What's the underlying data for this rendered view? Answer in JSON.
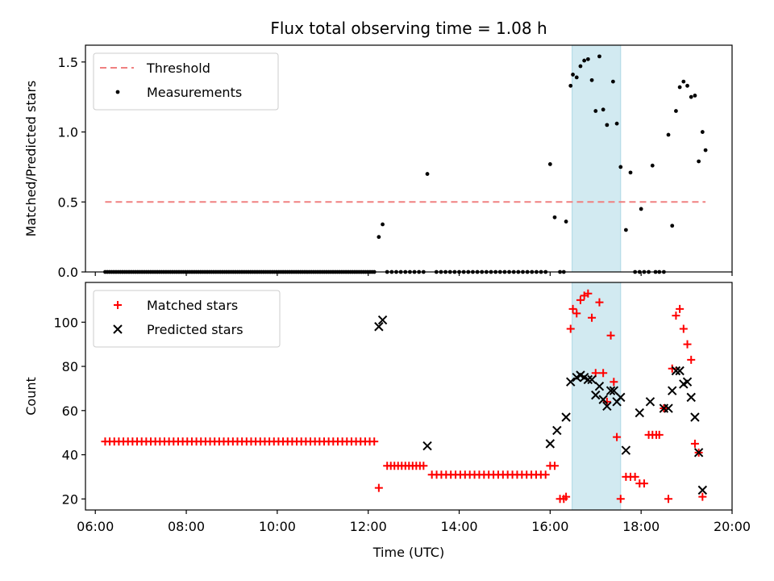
{
  "figure": {
    "title": "Flux total observing time = 1.08 h",
    "xlabel": "Time (UTC)"
  },
  "chart_data": [
    {
      "type": "scatter",
      "panel": "top",
      "ylabel": "Matched/Predicted stars",
      "xlim": [
        "05:47",
        "20:00"
      ],
      "ylim": [
        0.0,
        1.62
      ],
      "yticks": [
        0.0,
        0.5,
        1.0,
        1.5
      ],
      "ytick_labels": [
        "0.0",
        "0.5",
        "1.0",
        "1.5"
      ],
      "legend_position": "upper-left",
      "highlight": {
        "from": "16:29",
        "to": "17:33",
        "color": "#add8e6"
      },
      "threshold": {
        "name": "Threshold",
        "value": 0.5,
        "from": "06:13",
        "to": "19:25",
        "color": "#f08080",
        "style": "dashed"
      },
      "series": [
        {
          "name": "Measurements",
          "color": "#000000",
          "zero_run": {
            "from": "06:13",
            "to": "12:08",
            "count": 125,
            "value": 0
          },
          "points": [
            [
              "12:14",
              0.25
            ],
            [
              "12:19",
              0.34
            ],
            [
              "12:25",
              0.0
            ],
            [
              "12:31",
              0.0
            ],
            [
              "12:37",
              0.0
            ],
            [
              "12:43",
              0.0
            ],
            [
              "12:49",
              0.0
            ],
            [
              "12:55",
              0.0
            ],
            [
              "13:01",
              0.0
            ],
            [
              "13:07",
              0.0
            ],
            [
              "13:13",
              0.0
            ],
            [
              "13:18",
              0.7
            ],
            [
              "13:30",
              0.0
            ],
            [
              "13:36",
              0.0
            ],
            [
              "13:42",
              0.0
            ],
            [
              "13:48",
              0.0
            ],
            [
              "13:54",
              0.0
            ],
            [
              "14:00",
              0.0
            ],
            [
              "14:06",
              0.0
            ],
            [
              "14:12",
              0.0
            ],
            [
              "14:18",
              0.0
            ],
            [
              "14:24",
              0.0
            ],
            [
              "14:30",
              0.0
            ],
            [
              "14:36",
              0.0
            ],
            [
              "14:42",
              0.0
            ],
            [
              "14:48",
              0.0
            ],
            [
              "14:54",
              0.0
            ],
            [
              "15:00",
              0.0
            ],
            [
              "15:06",
              0.0
            ],
            [
              "15:12",
              0.0
            ],
            [
              "15:18",
              0.0
            ],
            [
              "15:24",
              0.0
            ],
            [
              "15:30",
              0.0
            ],
            [
              "15:36",
              0.0
            ],
            [
              "15:42",
              0.0
            ],
            [
              "15:48",
              0.0
            ],
            [
              "15:54",
              0.0
            ],
            [
              "16:00",
              0.77
            ],
            [
              "16:06",
              0.39
            ],
            [
              "16:13",
              0.0
            ],
            [
              "16:18",
              0.0
            ],
            [
              "16:21",
              0.36
            ],
            [
              "16:27",
              1.33
            ],
            [
              "16:30",
              1.41
            ],
            [
              "16:35",
              1.39
            ],
            [
              "16:40",
              1.47
            ],
            [
              "16:45",
              1.51
            ],
            [
              "16:50",
              1.52
            ],
            [
              "16:55",
              1.37
            ],
            [
              "17:00",
              1.15
            ],
            [
              "17:05",
              1.54
            ],
            [
              "17:10",
              1.16
            ],
            [
              "17:15",
              1.05
            ],
            [
              "17:23",
              1.36
            ],
            [
              "17:28",
              1.06
            ],
            [
              "17:33",
              0.75
            ],
            [
              "17:40",
              0.3
            ],
            [
              "17:46",
              0.71
            ],
            [
              "17:52",
              0.0
            ],
            [
              "17:58",
              0.0
            ],
            [
              "18:00",
              0.45
            ],
            [
              "18:04",
              0.0
            ],
            [
              "18:10",
              0.0
            ],
            [
              "18:15",
              0.76
            ],
            [
              "18:19",
              0.0
            ],
            [
              "18:24",
              0.0
            ],
            [
              "18:30",
              0.0
            ],
            [
              "18:36",
              0.98
            ],
            [
              "18:41",
              0.33
            ],
            [
              "18:46",
              1.15
            ],
            [
              "18:51",
              1.32
            ],
            [
              "18:56",
              1.36
            ],
            [
              "19:01",
              1.33
            ],
            [
              "19:06",
              1.25
            ],
            [
              "19:11",
              1.26
            ],
            [
              "19:16",
              0.79
            ],
            [
              "19:21",
              1.0
            ],
            [
              "19:25",
              0.87
            ]
          ]
        }
      ]
    },
    {
      "type": "scatter",
      "panel": "bottom",
      "ylabel": "Count",
      "xlabel": "Time (UTC)",
      "xlim": [
        "05:47",
        "20:00"
      ],
      "ylim": [
        15,
        118
      ],
      "yticks": [
        20,
        40,
        60,
        80,
        100
      ],
      "xticks": [
        "06:00",
        "08:00",
        "10:00",
        "12:00",
        "14:00",
        "16:00",
        "18:00",
        "20:00"
      ],
      "legend_position": "upper-left",
      "highlight": {
        "from": "16:29",
        "to": "17:33",
        "color": "#add8e6"
      },
      "series": [
        {
          "name": "Matched stars",
          "marker": "plus",
          "color": "#ff0000",
          "runs": [
            {
              "from": "06:13",
              "to": "12:08",
              "count": 60,
              "value": 46
            },
            {
              "from": "12:25",
              "to": "13:13",
              "count": 11,
              "value": 35
            },
            {
              "from": "13:24",
              "to": "15:54",
              "count": 25,
              "value": 31
            }
          ],
          "points": [
            [
              "12:14",
              25
            ],
            [
              "16:00",
              35
            ],
            [
              "16:06",
              35
            ],
            [
              "16:13",
              20
            ],
            [
              "16:18",
              20
            ],
            [
              "16:21",
              21
            ],
            [
              "16:27",
              97
            ],
            [
              "16:30",
              106
            ],
            [
              "16:35",
              104
            ],
            [
              "16:40",
              110
            ],
            [
              "16:45",
              112
            ],
            [
              "16:50",
              113
            ],
            [
              "16:55",
              102
            ],
            [
              "17:00",
              77
            ],
            [
              "17:05",
              109
            ],
            [
              "17:10",
              77
            ],
            [
              "17:15",
              64
            ],
            [
              "17:20",
              94
            ],
            [
              "17:24",
              73
            ],
            [
              "17:28",
              48
            ],
            [
              "17:33",
              20
            ],
            [
              "17:40",
              30
            ],
            [
              "17:46",
              30
            ],
            [
              "17:52",
              30
            ],
            [
              "17:58",
              27
            ],
            [
              "18:04",
              27
            ],
            [
              "18:10",
              49
            ],
            [
              "18:15",
              49
            ],
            [
              "18:20",
              49
            ],
            [
              "18:24",
              49
            ],
            [
              "18:30",
              61
            ],
            [
              "18:36",
              20
            ],
            [
              "18:41",
              79
            ],
            [
              "18:46",
              103
            ],
            [
              "18:51",
              106
            ],
            [
              "18:56",
              97
            ],
            [
              "19:01",
              90
            ],
            [
              "19:06",
              83
            ],
            [
              "19:11",
              45
            ],
            [
              "19:16",
              41
            ],
            [
              "19:21",
              21
            ]
          ]
        },
        {
          "name": "Predicted stars",
          "marker": "x",
          "color": "#000000",
          "points": [
            [
              "12:14",
              98
            ],
            [
              "12:19",
              101
            ],
            [
              "13:18",
              44
            ],
            [
              "16:00",
              45
            ],
            [
              "16:09",
              51
            ],
            [
              "16:21",
              57
            ],
            [
              "16:27",
              73
            ],
            [
              "16:35",
              75
            ],
            [
              "16:40",
              76
            ],
            [
              "16:45",
              75
            ],
            [
              "16:50",
              74
            ],
            [
              "16:55",
              74
            ],
            [
              "17:00",
              67
            ],
            [
              "17:05",
              71
            ],
            [
              "17:10",
              65
            ],
            [
              "17:15",
              62
            ],
            [
              "17:20",
              69
            ],
            [
              "17:24",
              69
            ],
            [
              "17:28",
              64
            ],
            [
              "17:33",
              66
            ],
            [
              "17:40",
              42
            ],
            [
              "17:58",
              59
            ],
            [
              "18:12",
              64
            ],
            [
              "18:30",
              61
            ],
            [
              "18:36",
              61
            ],
            [
              "18:41",
              69
            ],
            [
              "18:46",
              78
            ],
            [
              "18:51",
              78
            ],
            [
              "18:56",
              72
            ],
            [
              "19:01",
              73
            ],
            [
              "19:06",
              66
            ],
            [
              "19:11",
              57
            ],
            [
              "19:16",
              41
            ],
            [
              "19:21",
              24
            ]
          ]
        }
      ]
    }
  ]
}
